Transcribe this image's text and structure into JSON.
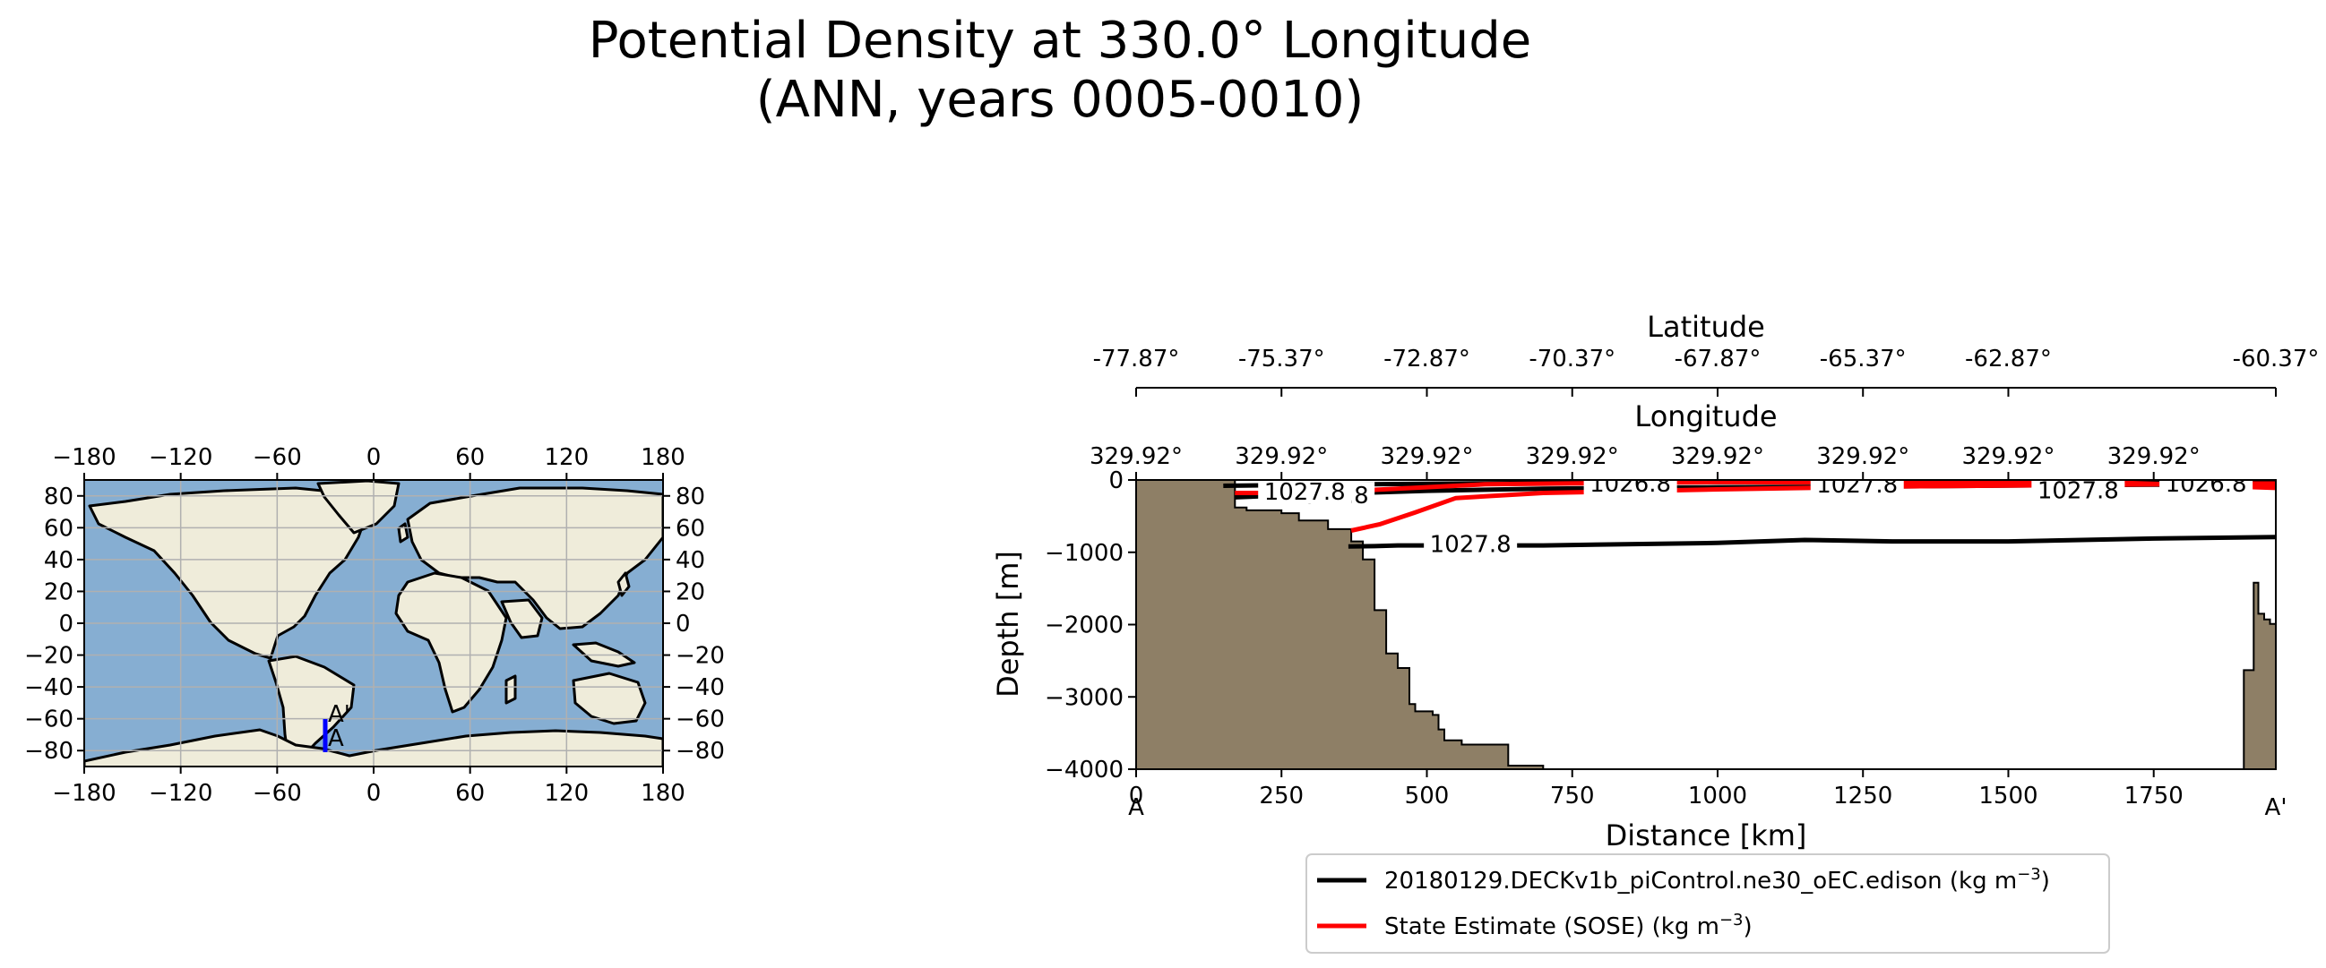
{
  "chart_data": [
    {
      "type": "map",
      "name": "location-map",
      "x_ticks": [
        -180,
        -120,
        -60,
        0,
        60,
        120,
        180
      ],
      "y_ticks": [
        80,
        60,
        40,
        20,
        0,
        -20,
        -40,
        -60,
        -80
      ],
      "xlim": [
        -180,
        180
      ],
      "ylim": [
        -90,
        90
      ],
      "transect_start_label": "A",
      "transect_end_label": "A'",
      "transect": {
        "lon": -30,
        "lat_start": -77.87,
        "lat_end": -60.37
      },
      "colors": {
        "ocean": "#86aed2",
        "land": "#efecda",
        "transect": "#0000ff"
      }
    },
    {
      "type": "line",
      "name": "density-section",
      "title": "Potential Density at 330.0° Longitude",
      "subtitle": "(ANN, years 0005-0010)",
      "xlabel": "Distance [km]",
      "ylabel": "Depth [m]",
      "xlim": [
        0,
        1960
      ],
      "ylim": [
        -4000,
        0
      ],
      "x_ticks": [
        0,
        250,
        500,
        750,
        1000,
        1250,
        1500,
        1750
      ],
      "y_ticks": [
        0,
        -1000,
        -2000,
        -3000,
        -4000
      ],
      "y_tick_labels": [
        "0",
        "−1000",
        "−2000",
        "−3000",
        "−4000"
      ],
      "start_label": "A",
      "end_label": "A'",
      "top_axis_1": {
        "label": "Longitude",
        "ticks": [
          "329.92°",
          "329.92°",
          "329.92°",
          "329.92°",
          "329.92°",
          "329.92°",
          "329.92°",
          "329.92°"
        ]
      },
      "top_axis_2": {
        "label": "Latitude",
        "ticks": [
          "-77.87°",
          "-75.37°",
          "-72.87°",
          "-70.37°",
          "-67.87°",
          "-65.37°",
          "-62.87°",
          "-60.37°"
        ]
      },
      "colors": {
        "bathymetry": "#8e7f66",
        "model": "#000000",
        "obs": "#ff0000",
        "obs_label": "#dd2222"
      },
      "bathymetry": {
        "left": [
          [
            0,
            0
          ],
          [
            170,
            0
          ],
          [
            170,
            -380
          ],
          [
            190,
            -380
          ],
          [
            190,
            -420
          ],
          [
            250,
            -420
          ],
          [
            250,
            -460
          ],
          [
            280,
            -460
          ],
          [
            280,
            -560
          ],
          [
            330,
            -560
          ],
          [
            330,
            -680
          ],
          [
            370,
            -680
          ],
          [
            370,
            -850
          ],
          [
            390,
            -850
          ],
          [
            390,
            -1100
          ],
          [
            410,
            -1100
          ],
          [
            410,
            -1800
          ],
          [
            430,
            -1800
          ],
          [
            430,
            -2400
          ],
          [
            450,
            -2400
          ],
          [
            450,
            -2600
          ],
          [
            470,
            -2600
          ],
          [
            470,
            -3100
          ],
          [
            480,
            -3100
          ],
          [
            480,
            -3200
          ],
          [
            510,
            -3200
          ],
          [
            510,
            -3250
          ],
          [
            520,
            -3250
          ],
          [
            520,
            -3450
          ],
          [
            530,
            -3450
          ],
          [
            530,
            -3600
          ],
          [
            560,
            -3600
          ],
          [
            560,
            -3660
          ],
          [
            640,
            -3660
          ],
          [
            640,
            -3950
          ],
          [
            700,
            -3950
          ],
          [
            700,
            -4000
          ]
        ],
        "right": [
          [
            1960,
            0
          ],
          [
            1960,
            -1990
          ],
          [
            1950,
            -1990
          ],
          [
            1950,
            -1930
          ],
          [
            1940,
            -1930
          ],
          [
            1940,
            -1850
          ],
          [
            1930,
            -1850
          ],
          [
            1930,
            -1420
          ],
          [
            1922,
            -1420
          ],
          [
            1922,
            -2630
          ],
          [
            1905,
            -2630
          ],
          [
            1905,
            -4000
          ]
        ]
      },
      "series": [
        {
          "name": "20180129.DECKv1b_piControl.ne30_oEC.edison",
          "legend_label": "20180129.DECKv1b_piControl.ne30_oEC.edison (kg m",
          "legend_unit_sup": "−3",
          "color": "#000000",
          "contours": [
            {
              "level": "1027.8",
              "x": [
                365,
                410,
                450,
                700,
                1000,
                1150,
                1300,
                1500,
                1750,
                1960
              ],
              "y": [
                -920,
                -915,
                -905,
                -905,
                -870,
                -830,
                -850,
                -850,
                -810,
                -790
              ]
            },
            {
              "level": "1027.8",
              "x": [
                170,
                300,
                500,
                700,
                1000,
                1300,
                1600,
                1960
              ],
              "y": [
                -240,
                -200,
                -150,
                -120,
                -100,
                -90,
                -70,
                -60
              ]
            },
            {
              "level": "1026.8",
              "x": [
                150,
                400,
                700,
                1000,
                1300,
                1600,
                1960
              ],
              "y": [
                -80,
                -60,
                -40,
                -30,
                -20,
                -15,
                -10
              ]
            }
          ],
          "inline_labels": [
            {
              "text": "1027.8",
              "x": 575,
              "y": -870
            },
            {
              "text": "1027.8",
              "x": 330,
              "y": -200
            },
            {
              "text": "1026.8",
              "x": 850,
              "y": -40
            },
            {
              "text": "1027.8",
              "x": 1240,
              "y": -50
            }
          ]
        },
        {
          "name": "State Estimate (SOSE)",
          "legend_label": "State Estimate (SOSE) (kg m",
          "legend_unit_sup": "−3",
          "color": "#ff0000",
          "contours": [
            {
              "level": "1027.8",
              "x": [
                370,
                420,
                480,
                550,
                700,
                1000,
                1300,
                1600,
                1900,
                1960
              ],
              "y": [
                -700,
                -610,
                -450,
                -250,
                -180,
                -130,
                -90,
                -70,
                -50,
                -50
              ]
            },
            {
              "level": "1026.8",
              "x": [
                170,
                300,
                600,
                1000,
                1400,
                1700,
                1960
              ],
              "y": [
                -180,
                -180,
                -60,
                -30,
                -40,
                -40,
                -110
              ]
            }
          ],
          "inline_labels": [
            {
              "text": "1027.8",
              "x": 290,
              "y": -150
            },
            {
              "text": "1027.8",
              "x": 1620,
              "y": -130
            },
            {
              "text": "1026.8",
              "x": 1840,
              "y": -40
            }
          ]
        }
      ]
    }
  ]
}
